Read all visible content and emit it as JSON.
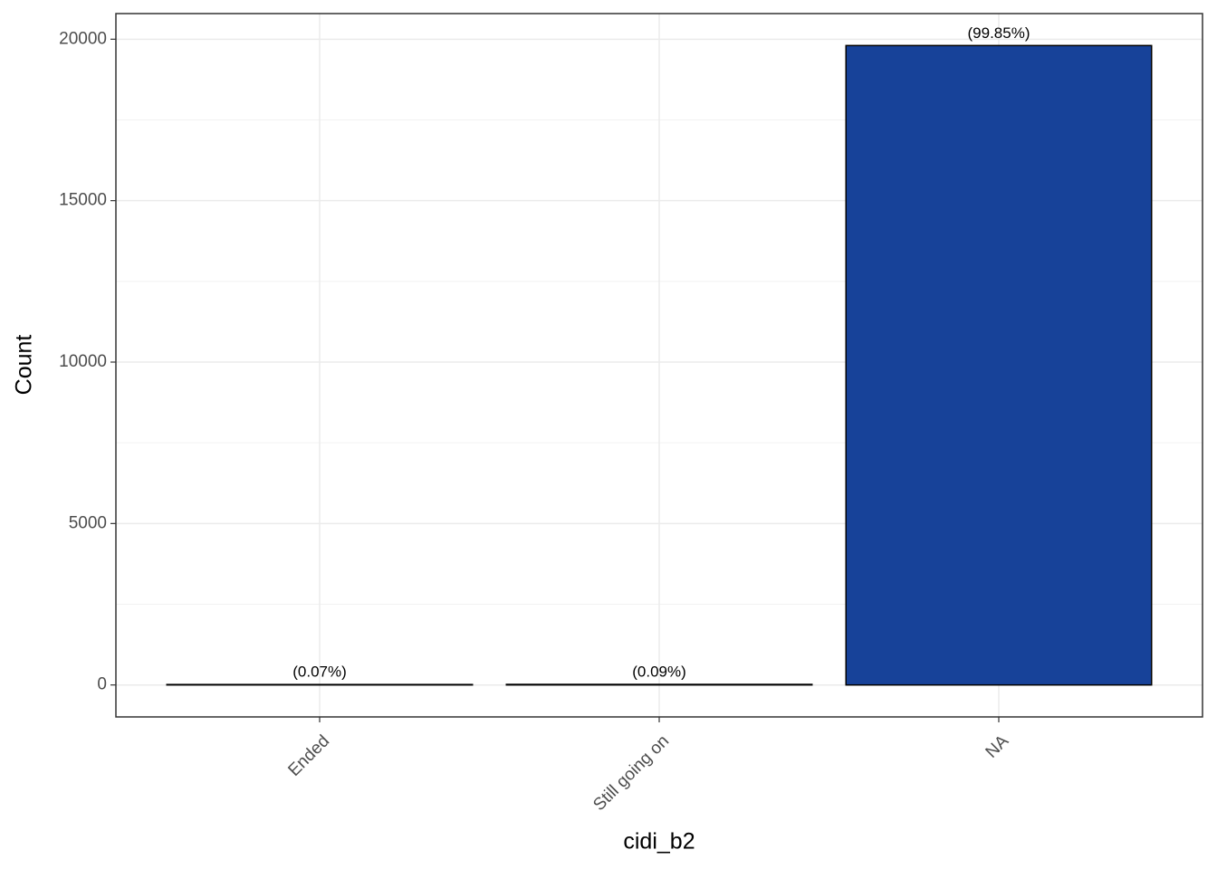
{
  "chart_data": {
    "type": "bar",
    "x_label": "cidi_b2",
    "y_label": "Count",
    "categories": [
      "Ended",
      "Still going on",
      "NA"
    ],
    "values": [
      14,
      18,
      19804
    ],
    "percent_labels": [
      "(0.07%)",
      "(0.09%)",
      "(99.85%)"
    ],
    "color": "#174299",
    "ylim": [
      -990,
      20794
    ],
    "yticks": [
      0,
      5000,
      10000,
      15000,
      20000
    ],
    "minor_yticks": [
      2500,
      7500,
      12500,
      17500
    ],
    "grid": true
  }
}
